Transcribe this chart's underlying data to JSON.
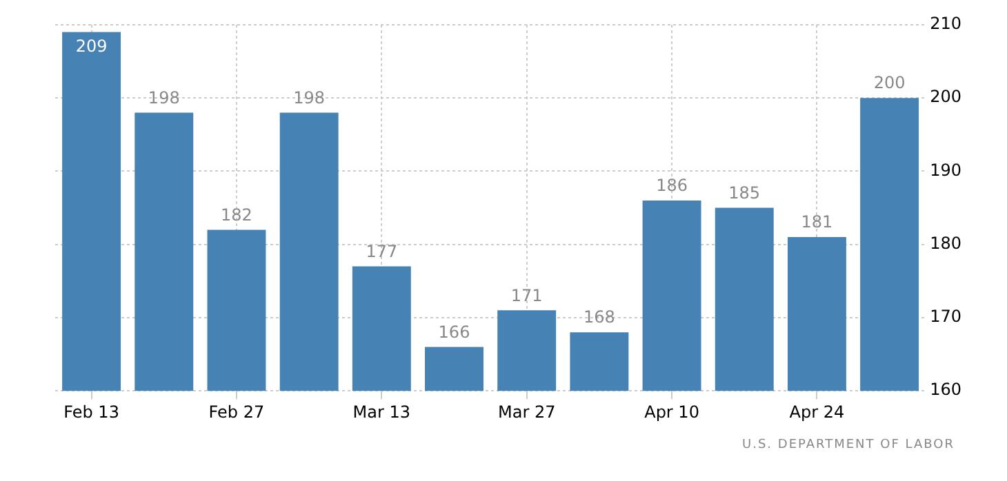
{
  "chart_data": {
    "type": "bar",
    "categories": [
      "Feb 13",
      null,
      "Feb 27",
      null,
      "Mar 13",
      null,
      "Mar 27",
      null,
      "Apr 10",
      null,
      "Apr 24",
      null
    ],
    "values": [
      209,
      198,
      182,
      198,
      177,
      166,
      171,
      168,
      186,
      185,
      181,
      200
    ],
    "color": "#4682b4",
    "ylim": [
      160,
      210
    ],
    "yticks": [
      160,
      170,
      180,
      190,
      200,
      210
    ],
    "grid": true,
    "data_labels": true,
    "annotations": [
      "U.S. DEPARTMENT OF LABOR"
    ]
  }
}
